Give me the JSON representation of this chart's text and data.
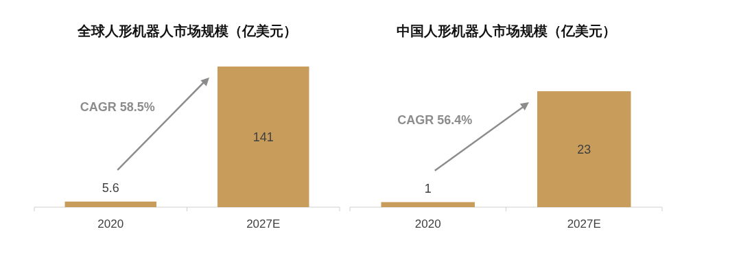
{
  "chart_data": [
    {
      "type": "bar",
      "title": "全球人形机器人市场规模（亿美元）",
      "categories": [
        "2020",
        "2027E"
      ],
      "values": [
        5.6,
        141
      ],
      "color": "#c89c5b",
      "data_labels": true,
      "annotations": [
        "CAGR 58.5%"
      ]
    },
    {
      "type": "bar",
      "title": "中国人形机器人市场规模（亿美元）",
      "categories": [
        "2020",
        "2027E"
      ],
      "values": [
        1,
        23
      ],
      "color": "#c89c5b",
      "data_labels": true,
      "annotations": [
        "CAGR 56.4%"
      ]
    }
  ]
}
